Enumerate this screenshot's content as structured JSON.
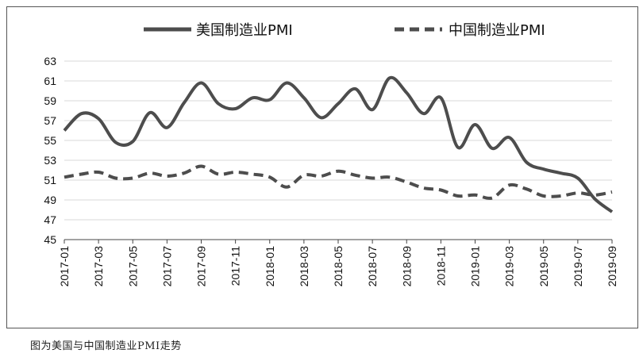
{
  "caption": "图为美国与中国制造业PMI走势",
  "chart_data": {
    "type": "line",
    "title": "",
    "xlabel": "",
    "ylabel": "",
    "ylim": [
      45,
      63
    ],
    "yticks": [
      "63",
      "61",
      "59",
      "57",
      "55",
      "53",
      "51",
      "49",
      "47",
      "45"
    ],
    "legend_position": "top",
    "grid": "horizontal",
    "x": [
      "2017-01",
      "2017-02",
      "2017-03",
      "2017-04",
      "2017-05",
      "2017-06",
      "2017-07",
      "2017-08",
      "2017-09",
      "2017-10",
      "2017-11",
      "2017-12",
      "2018-01",
      "2018-02",
      "2018-03",
      "2018-04",
      "2018-05",
      "2018-06",
      "2018-07",
      "2018-08",
      "2018-09",
      "2018-10",
      "2018-11",
      "2018-12",
      "2019-01",
      "2019-02",
      "2019-03",
      "2019-04",
      "2019-05",
      "2019-06",
      "2019-07",
      "2019-08",
      "2019-09"
    ],
    "xtick_labels": [
      "2017-01",
      "2017-03",
      "2017-05",
      "2017-07",
      "2017-09",
      "2017-11",
      "2018-01",
      "2018-03",
      "2018-05",
      "2018-07",
      "2018-09",
      "2018-11",
      "2019-01",
      "2019-03",
      "2019-05",
      "2019-07",
      "2019-09"
    ],
    "series": [
      {
        "name": "美国制造业PMI",
        "style": "solid",
        "color": "#4d4d4d",
        "values": [
          56.0,
          57.7,
          57.2,
          54.8,
          54.9,
          57.8,
          56.3,
          58.8,
          60.8,
          58.7,
          58.2,
          59.3,
          59.1,
          60.8,
          59.3,
          57.3,
          58.7,
          60.2,
          58.1,
          61.3,
          59.8,
          57.7,
          59.3,
          54.3,
          56.6,
          54.2,
          55.3,
          52.8,
          52.1,
          51.7,
          51.2,
          49.1,
          47.8
        ]
      },
      {
        "name": "中国制造业PMI",
        "style": "dashed",
        "color": "#4d4d4d",
        "values": [
          51.3,
          51.6,
          51.8,
          51.2,
          51.2,
          51.7,
          51.4,
          51.7,
          52.4,
          51.6,
          51.8,
          51.6,
          51.3,
          50.3,
          51.5,
          51.4,
          51.9,
          51.5,
          51.2,
          51.3,
          50.8,
          50.2,
          50.0,
          49.4,
          49.5,
          49.2,
          50.5,
          50.1,
          49.4,
          49.4,
          49.7,
          49.5,
          49.8
        ]
      }
    ]
  }
}
